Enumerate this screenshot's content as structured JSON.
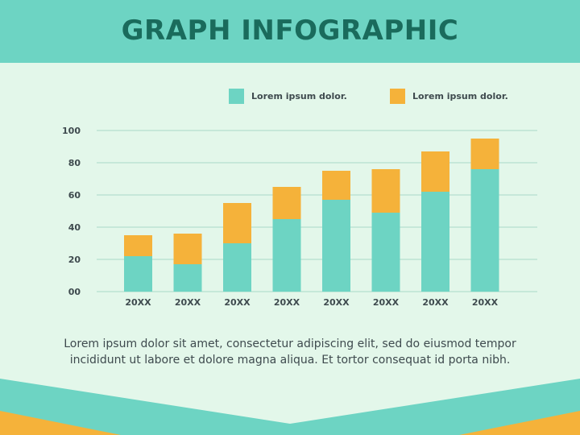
{
  "header": {
    "title": "GRAPH INFOGRAPHIC"
  },
  "colors": {
    "teal": "#6dd4c3",
    "orange": "#f5b23a",
    "title": "#1a6b5c",
    "background": "#e3f7ea"
  },
  "chart_data": {
    "type": "bar",
    "stacked": true,
    "categories": [
      "20XX",
      "20XX",
      "20XX",
      "20XX",
      "20XX",
      "20XX",
      "20XX",
      "20XX"
    ],
    "series": [
      {
        "name": "Lorem ipsum dolor.",
        "color": "#6dd4c3",
        "values": [
          22,
          17,
          30,
          45,
          57,
          49,
          62,
          76
        ]
      },
      {
        "name": "Lorem ipsum dolor.",
        "color": "#f5b23a",
        "values": [
          13,
          19,
          25,
          20,
          18,
          27,
          25,
          19
        ]
      }
    ],
    "yticks": [
      "00",
      "20",
      "40",
      "60",
      "80",
      "100"
    ],
    "ylim": [
      0,
      100
    ],
    "grid": true,
    "legend": "top"
  },
  "caption": {
    "line1": "Lorem ipsum dolor sit amet, consectetur adipiscing elit, sed do eiusmod tempor",
    "line2": "incididunt ut labore et dolore magna aliqua. Et tortor consequat id porta nibh."
  }
}
